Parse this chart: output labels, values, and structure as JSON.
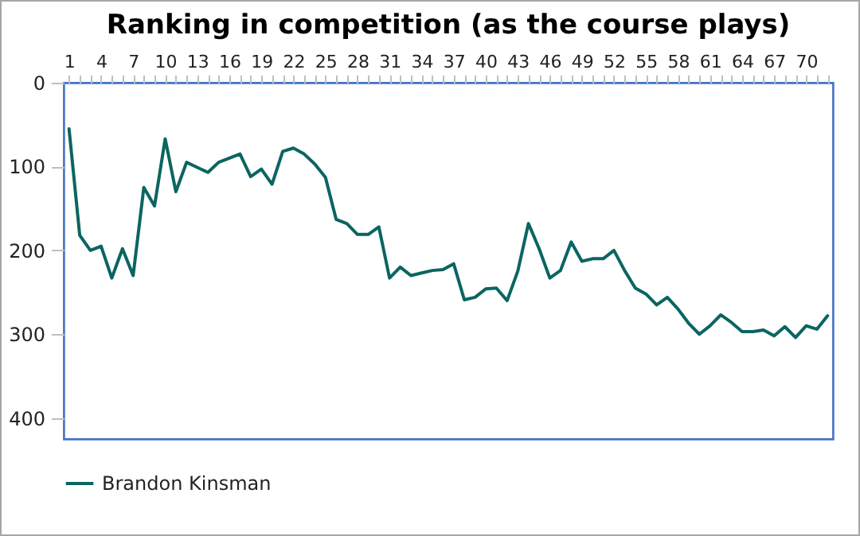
{
  "chart_data": {
    "type": "line",
    "title": "Ranking in competition (as the course plays)",
    "x": [
      1,
      2,
      3,
      4,
      5,
      6,
      7,
      8,
      9,
      10,
      11,
      12,
      13,
      14,
      15,
      16,
      17,
      18,
      19,
      20,
      21,
      22,
      23,
      24,
      25,
      26,
      27,
      28,
      29,
      30,
      31,
      32,
      33,
      34,
      35,
      36,
      37,
      38,
      39,
      40,
      41,
      42,
      43,
      44,
      45,
      46,
      47,
      48,
      49,
      50,
      51,
      52,
      53,
      54,
      55,
      56,
      57,
      58,
      59,
      60,
      61,
      62,
      63,
      64,
      65,
      66,
      67,
      68,
      69,
      70,
      71,
      72
    ],
    "series": [
      {
        "name": "Brandon Kinsman",
        "color": "#0b6561",
        "values": [
          55,
          182,
          200,
          195,
          233,
          198,
          230,
          125,
          147,
          67,
          130,
          95,
          101,
          107,
          95,
          90,
          85,
          112,
          103,
          121,
          82,
          78,
          85,
          97,
          113,
          163,
          168,
          181,
          181,
          172,
          233,
          220,
          230,
          227,
          224,
          223,
          216,
          259,
          256,
          246,
          245,
          260,
          225,
          168,
          198,
          233,
          224,
          190,
          213,
          210,
          210,
          200,
          224,
          245,
          252,
          265,
          256,
          270,
          287,
          300,
          290,
          277,
          286,
          297,
          297,
          295,
          302,
          291,
          304,
          290,
          294,
          278
        ]
      }
    ],
    "xlim": [
      0.5,
      72.5
    ],
    "xticks": [
      1,
      {
        "value": 2,
        "label": null
      },
      {
        "value": 3,
        "label": null
      },
      4,
      {
        "value": 5,
        "label": null
      },
      {
        "value": 6,
        "label": null
      },
      7,
      {
        "value": 8,
        "label": null
      },
      {
        "value": 9,
        "label": null
      },
      10,
      {
        "value": 11,
        "label": null
      },
      {
        "value": 12,
        "label": null
      },
      13,
      {
        "value": 14,
        "label": null
      },
      {
        "value": 15,
        "label": null
      },
      16,
      {
        "value": 17,
        "label": null
      },
      {
        "value": 18,
        "label": null
      },
      19,
      {
        "value": 20,
        "label": null
      },
      {
        "value": 21,
        "label": null
      },
      22,
      {
        "value": 23,
        "label": null
      },
      {
        "value": 24,
        "label": null
      },
      25,
      {
        "value": 26,
        "label": null
      },
      {
        "value": 27,
        "label": null
      },
      28,
      {
        "value": 29,
        "label": null
      },
      {
        "value": 30,
        "label": null
      },
      31,
      {
        "value": 32,
        "label": null
      },
      {
        "value": 33,
        "label": null
      },
      34,
      {
        "value": 35,
        "label": null
      },
      {
        "value": 36,
        "label": null
      },
      37,
      {
        "value": 38,
        "label": null
      },
      {
        "value": 39,
        "label": null
      },
      40,
      {
        "value": 41,
        "label": null
      },
      {
        "value": 42,
        "label": null
      },
      43,
      {
        "value": 44,
        "label": null
      },
      {
        "value": 45,
        "label": null
      },
      46,
      {
        "value": 47,
        "label": null
      },
      {
        "value": 48,
        "label": null
      },
      49,
      {
        "value": 50,
        "label": null
      },
      {
        "value": 51,
        "label": null
      },
      52,
      {
        "value": 53,
        "label": null
      },
      {
        "value": 54,
        "label": null
      },
      55,
      {
        "value": 56,
        "label": null
      },
      {
        "value": 57,
        "label": null
      },
      58,
      {
        "value": 59,
        "label": null
      },
      {
        "value": 60,
        "label": null
      },
      61,
      {
        "value": 62,
        "label": null
      },
      {
        "value": 63,
        "label": null
      },
      64,
      {
        "value": 65,
        "label": null
      },
      {
        "value": 66,
        "label": null
      },
      67,
      {
        "value": 68,
        "label": null
      },
      {
        "value": 69,
        "label": null
      },
      70,
      {
        "value": 71,
        "label": null
      },
      {
        "value": 72,
        "label": null
      }
    ],
    "ylim": [
      425,
      0
    ],
    "yticks": [
      0,
      100,
      200,
      300,
      400
    ],
    "grid": false,
    "legend": "bottom",
    "marker": "none",
    "line_style": "solid"
  }
}
